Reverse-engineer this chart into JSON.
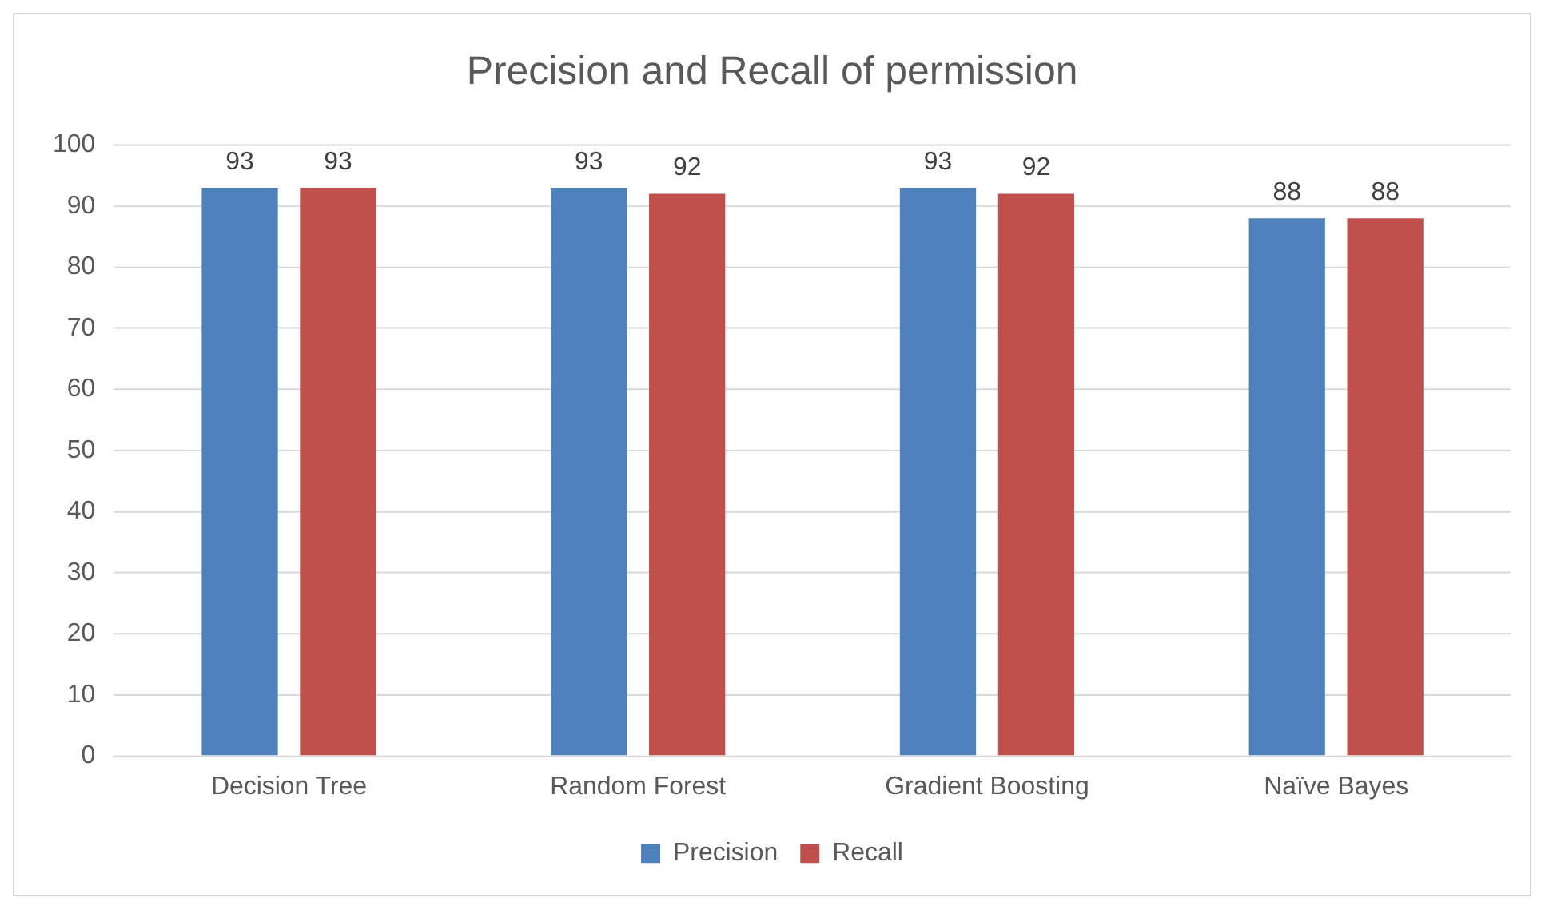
{
  "chart_data": {
    "type": "bar",
    "title": "Precision and Recall of permission",
    "categories": [
      "Decision Tree",
      "Random Forest",
      "Gradient Boosting",
      "Naïve Bayes"
    ],
    "series": [
      {
        "name": "Precision",
        "color": "#4f81bd",
        "values": [
          93,
          93,
          93,
          88
        ]
      },
      {
        "name": "Recall",
        "color": "#c0504d",
        "values": [
          93,
          92,
          92,
          88
        ]
      }
    ],
    "ylim": [
      0,
      100
    ],
    "yticks": [
      0,
      10,
      20,
      30,
      40,
      50,
      60,
      70,
      80,
      90,
      100
    ],
    "grid": "y",
    "legend": "bottom",
    "data_labels": true
  }
}
